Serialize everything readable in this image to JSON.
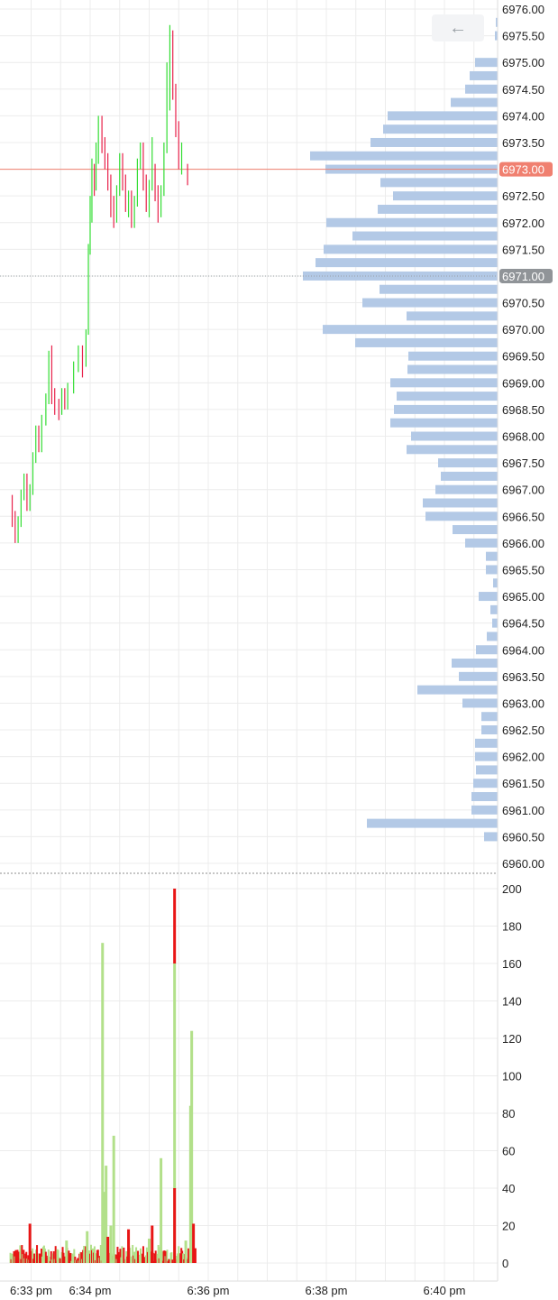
{
  "controls": {
    "back_label": "←"
  },
  "colors": {
    "up": "#33dd33",
    "down": "#e8214a",
    "profile": "#b3c9e6",
    "last": "#f08070",
    "poc": "#909498",
    "vol_up": "#b2e08a",
    "vol_down": "#e81515",
    "grid": "#ececec"
  },
  "chart_data": [
    {
      "type": "candlestick",
      "title": "",
      "ylim": [
        6960.0,
        6976.0
      ],
      "price_ticks": [
        "6976.00",
        "6975.50",
        "6975.00",
        "6974.50",
        "6974.00",
        "6973.50",
        "6973.00",
        "6972.50",
        "6972.00",
        "6971.50",
        "6971.00",
        "6970.50",
        "6970.00",
        "6969.50",
        "6969.00",
        "6968.50",
        "6968.00",
        "6967.50",
        "6967.00",
        "6966.50",
        "6966.00",
        "6965.50",
        "6965.00",
        "6964.50",
        "6964.00",
        "6963.50",
        "6963.00",
        "6962.50",
        "6962.00",
        "6961.50",
        "6961.00",
        "6960.50",
        "6960.00"
      ],
      "time_ticks": [
        "6:33 pm",
        "6:34 pm",
        "6:36 pm",
        "6:38 pm",
        "6:40 pm"
      ],
      "time_axis_minutes": [
        33.0,
        34.0,
        36.0,
        38.0,
        40.0
      ],
      "xlim_minutes": [
        32.65,
        40.6
      ],
      "last_price": {
        "value": 6973.0,
        "label": "6973.00"
      },
      "marked_price": {
        "value": 6971.0,
        "label": "6971.00"
      },
      "candles": [
        [
          32.68,
          6966.8,
          6966.5,
          6966.9,
          6966.3
        ],
        [
          32.73,
          6966.5,
          6966.1,
          6966.6,
          6966.0
        ],
        [
          32.78,
          6966.1,
          6966.4,
          6966.5,
          6966.0
        ],
        [
          32.83,
          6966.4,
          6966.9,
          6967.0,
          6966.3
        ],
        [
          32.88,
          6966.9,
          6967.2,
          6967.3,
          6966.8
        ],
        [
          32.93,
          6967.2,
          6966.7,
          6967.3,
          6966.6
        ],
        [
          32.98,
          6966.7,
          6967.0,
          6967.1,
          6966.6
        ],
        [
          33.03,
          6967.0,
          6967.6,
          6967.7,
          6966.9
        ],
        [
          33.08,
          6967.6,
          6968.1,
          6968.2,
          6967.5
        ],
        [
          33.13,
          6968.1,
          6967.8,
          6968.2,
          6967.7
        ],
        [
          33.18,
          6967.8,
          6968.3,
          6968.4,
          6967.7
        ],
        [
          33.25,
          6968.3,
          6968.7,
          6968.8,
          6968.2
        ],
        [
          33.3,
          6968.7,
          6969.5,
          6969.6,
          6968.6
        ],
        [
          33.35,
          6969.5,
          6968.8,
          6969.7,
          6968.6
        ],
        [
          33.4,
          6968.8,
          6968.6,
          6968.9,
          6968.4
        ],
        [
          33.47,
          6968.6,
          6968.5,
          6968.7,
          6968.3
        ],
        [
          33.52,
          6968.5,
          6968.8,
          6968.9,
          6968.4
        ],
        [
          33.57,
          6968.8,
          6968.6,
          6968.9,
          6968.5
        ],
        [
          33.62,
          6968.6,
          6968.9,
          6969.0,
          6968.5
        ],
        [
          33.72,
          6968.9,
          6969.3,
          6969.4,
          6968.8
        ],
        [
          33.8,
          6969.3,
          6969.6,
          6969.7,
          6969.2
        ],
        [
          33.87,
          6969.6,
          6969.3,
          6969.7,
          6969.1
        ],
        [
          33.93,
          6969.3,
          6970.0,
          6970.0,
          6969.3
        ],
        [
          33.97,
          6970.0,
          6971.5,
          6971.6,
          6969.9
        ],
        [
          34.0,
          6971.5,
          6972.4,
          6972.5,
          6971.4
        ],
        [
          34.03,
          6972.4,
          6972.9,
          6973.2,
          6972.0
        ],
        [
          34.07,
          6972.9,
          6972.7,
          6973.1,
          6972.5
        ],
        [
          34.1,
          6972.7,
          6973.3,
          6973.5,
          6972.6
        ],
        [
          34.14,
          6973.3,
          6973.9,
          6974.0,
          6973.1
        ],
        [
          34.2,
          6973.9,
          6973.5,
          6974.0,
          6973.3
        ],
        [
          34.25,
          6973.5,
          6973.2,
          6973.6,
          6973.0
        ],
        [
          34.3,
          6973.2,
          6972.8,
          6973.3,
          6972.6
        ],
        [
          34.35,
          6972.8,
          6972.4,
          6972.9,
          6972.1
        ],
        [
          34.4,
          6972.4,
          6972.1,
          6972.5,
          6971.9
        ],
        [
          34.45,
          6972.1,
          6972.6,
          6972.7,
          6972.0
        ],
        [
          34.5,
          6972.6,
          6973.2,
          6973.3,
          6972.5
        ],
        [
          34.55,
          6973.2,
          6972.8,
          6973.3,
          6972.6
        ],
        [
          34.6,
          6972.8,
          6972.3,
          6972.9,
          6972.2
        ],
        [
          34.65,
          6972.3,
          6972.5,
          6972.6,
          6972.1
        ],
        [
          34.7,
          6972.5,
          6972.0,
          6972.6,
          6971.9
        ],
        [
          34.75,
          6972.0,
          6972.4,
          6972.5,
          6971.9
        ],
        [
          34.8,
          6972.4,
          6973.1,
          6973.2,
          6972.3
        ],
        [
          34.85,
          6973.1,
          6973.4,
          6973.5,
          6973.0
        ],
        [
          34.9,
          6973.4,
          6972.8,
          6973.5,
          6972.6
        ],
        [
          34.95,
          6972.8,
          6972.4,
          6972.9,
          6972.2
        ],
        [
          35.0,
          6972.4,
          6972.7,
          6972.8,
          6972.1
        ],
        [
          35.05,
          6972.7,
          6973.0,
          6973.6,
          6972.6
        ],
        [
          35.1,
          6973.0,
          6972.6,
          6973.1,
          6972.4
        ],
        [
          35.15,
          6972.6,
          6972.2,
          6972.7,
          6972.0
        ],
        [
          35.2,
          6972.2,
          6972.6,
          6972.7,
          6972.1
        ],
        [
          35.25,
          6972.6,
          6973.4,
          6973.5,
          6972.5
        ],
        [
          35.3,
          6973.4,
          6974.2,
          6975.0,
          6973.3
        ],
        [
          35.35,
          6974.2,
          6975.6,
          6975.7,
          6974.1
        ],
        [
          35.4,
          6975.6,
          6974.5,
          6975.6,
          6974.3
        ],
        [
          35.45,
          6974.5,
          6973.8,
          6974.6,
          6973.6
        ],
        [
          35.5,
          6973.8,
          6973.2,
          6973.9,
          6973.0
        ],
        [
          35.55,
          6973.2,
          6973.3,
          6973.5,
          6972.9
        ],
        [
          35.65,
          6973.0,
          6972.8,
          6973.1,
          6972.7
        ]
      ],
      "volume": {
        "ylim": [
          0,
          200
        ],
        "ticks": [
          "200",
          "180",
          "160",
          "140",
          "120",
          "100",
          "80",
          "60",
          "40",
          "20",
          "0"
        ],
        "spikes": [
          [
            34.21,
            171,
            "up"
          ],
          [
            34.24,
            38,
            "up"
          ],
          [
            34.27,
            52,
            "up"
          ],
          [
            34.3,
            14,
            "down"
          ],
          [
            34.35,
            20,
            "up"
          ],
          [
            34.4,
            68,
            "up"
          ],
          [
            34.65,
            18,
            "down"
          ],
          [
            35.05,
            20,
            "down"
          ],
          [
            35.2,
            56,
            "up"
          ],
          [
            35.43,
            160,
            "up"
          ],
          [
            35.43,
            40,
            "down"
          ],
          [
            35.7,
            84,
            "up"
          ],
          [
            35.72,
            124,
            "up"
          ],
          [
            35.75,
            21,
            "down"
          ],
          [
            32.98,
            21,
            "down"
          ],
          [
            33.6,
            12,
            "up"
          ],
          [
            33.95,
            17,
            "up"
          ],
          [
            35.0,
            13,
            "up"
          ],
          [
            35.62,
            12,
            "up"
          ]
        ]
      },
      "volume_profile": [
        [
          6975.75,
          2
        ],
        [
          6975.5,
          3
        ],
        [
          6975.0,
          25
        ],
        [
          6974.75,
          31
        ],
        [
          6974.5,
          36
        ],
        [
          6974.25,
          52
        ],
        [
          6974.0,
          122
        ],
        [
          6973.75,
          127
        ],
        [
          6973.5,
          141
        ],
        [
          6973.25,
          208
        ],
        [
          6973.0,
          191
        ],
        [
          6972.75,
          130
        ],
        [
          6972.5,
          116
        ],
        [
          6972.25,
          133
        ],
        [
          6972.0,
          190
        ],
        [
          6971.75,
          161
        ],
        [
          6971.5,
          193
        ],
        [
          6971.25,
          202
        ],
        [
          6971.0,
          216
        ],
        [
          6970.75,
          131
        ],
        [
          6970.5,
          150
        ],
        [
          6970.25,
          101
        ],
        [
          6970.0,
          194
        ],
        [
          6969.75,
          158
        ],
        [
          6969.5,
          99
        ],
        [
          6969.25,
          100
        ],
        [
          6969.0,
          119
        ],
        [
          6968.75,
          112
        ],
        [
          6968.5,
          115
        ],
        [
          6968.25,
          119
        ],
        [
          6968.0,
          96
        ],
        [
          6967.75,
          101
        ],
        [
          6967.5,
          66
        ],
        [
          6967.25,
          63
        ],
        [
          6967.0,
          69
        ],
        [
          6966.75,
          83
        ],
        [
          6966.5,
          80
        ],
        [
          6966.25,
          50
        ],
        [
          6966.0,
          36
        ],
        [
          6965.75,
          13
        ],
        [
          6965.5,
          13
        ],
        [
          6965.25,
          5
        ],
        [
          6965.0,
          21
        ],
        [
          6964.75,
          8
        ],
        [
          6964.5,
          6
        ],
        [
          6964.25,
          12
        ],
        [
          6964.0,
          24
        ],
        [
          6963.75,
          51
        ],
        [
          6963.5,
          43
        ],
        [
          6963.25,
          89
        ],
        [
          6963.0,
          39
        ],
        [
          6962.75,
          18
        ],
        [
          6962.5,
          18
        ],
        [
          6962.25,
          25
        ],
        [
          6962.0,
          25
        ],
        [
          6961.75,
          24
        ],
        [
          6961.5,
          27
        ],
        [
          6961.25,
          29
        ],
        [
          6961.0,
          29
        ],
        [
          6960.75,
          145
        ],
        [
          6960.5,
          15
        ]
      ]
    }
  ]
}
